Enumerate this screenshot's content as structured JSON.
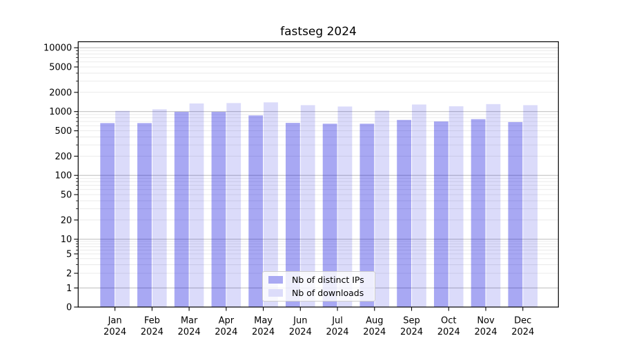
{
  "chart_data": {
    "type": "bar",
    "title": "fastseg 2024",
    "categories": [
      "Jan",
      "Feb",
      "Mar",
      "Apr",
      "May",
      "Jun",
      "Jul",
      "Aug",
      "Sep",
      "Oct",
      "Nov",
      "Dec"
    ],
    "category_year": "2024",
    "series": [
      {
        "name": "Nb of distinct IPs",
        "color": "#0000dc",
        "opacity": 0.34,
        "values": [
          660,
          660,
          990,
          990,
          870,
          665,
          645,
          645,
          740,
          700,
          760,
          685
        ]
      },
      {
        "name": "Nb of downloads",
        "color": "#0000dc",
        "opacity": 0.14,
        "values": [
          1025,
          1085,
          1340,
          1360,
          1395,
          1260,
          1200,
          1035,
          1290,
          1210,
          1310,
          1260
        ]
      }
    ],
    "xlabel": "",
    "ylabel": "",
    "yscale": "symlog",
    "ylim": [
      0,
      12600
    ],
    "yticks": [
      0,
      1,
      2,
      5,
      10,
      20,
      50,
      100,
      200,
      500,
      1000,
      2000,
      5000,
      10000
    ],
    "major_grid_values": [
      1,
      10,
      100,
      1000,
      10000
    ],
    "grid": true,
    "legend_position": "lower center"
  },
  "colors": {
    "background": "#ffffff",
    "bar_distinct_ips_rendered": "#a9a9f3",
    "bar_downloads_rendered": "#dcdcfa",
    "grid_major": "#c2c2c2",
    "grid_minor": "#e8e8e8",
    "spine": "#000000",
    "text": "#000000",
    "legend_border": "#cccccc",
    "legend_background": "#ffffff"
  }
}
